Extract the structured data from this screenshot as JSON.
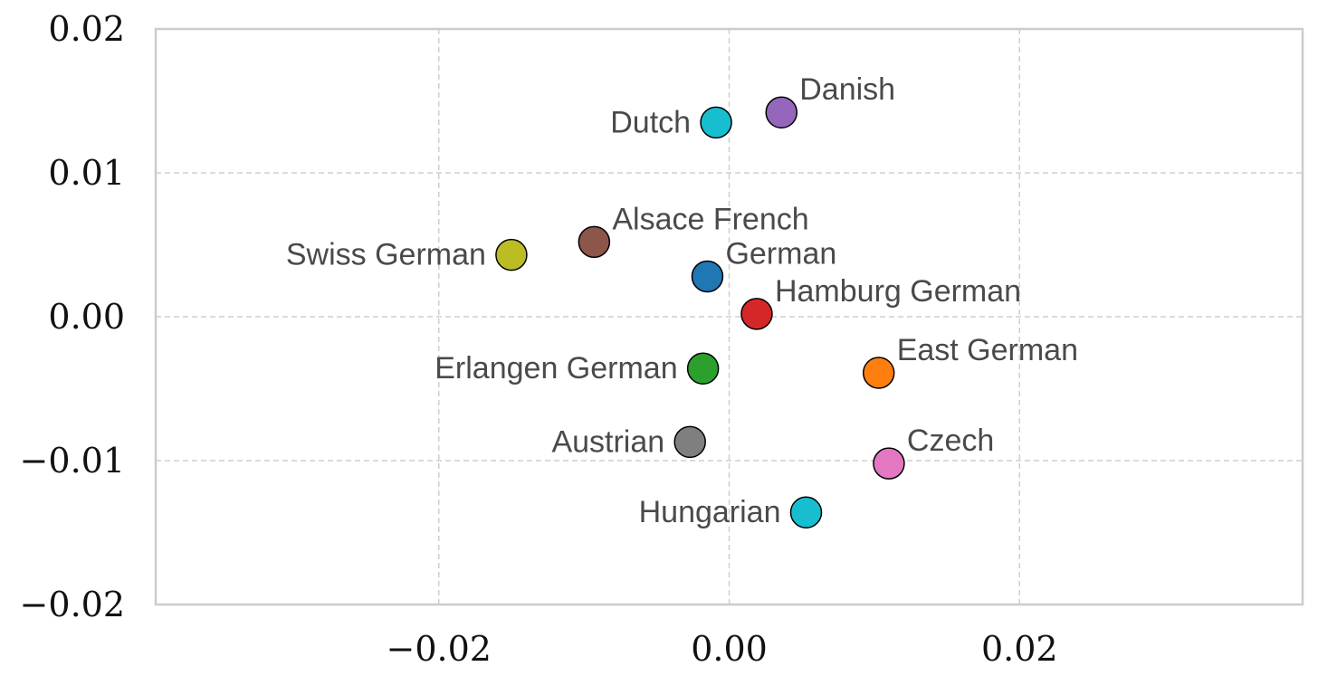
{
  "chart_data": {
    "type": "scatter",
    "title": "",
    "xlabel": "",
    "ylabel": "",
    "xlim": [
      -0.0395,
      0.0395
    ],
    "ylim": [
      -0.02,
      0.02
    ],
    "x_ticks": [
      {
        "value": -0.02,
        "label": "−0.02"
      },
      {
        "value": 0.0,
        "label": "0.00"
      },
      {
        "value": 0.02,
        "label": "0.02"
      }
    ],
    "y_ticks": [
      {
        "value": 0.02,
        "label": "0.02"
      },
      {
        "value": 0.01,
        "label": "0.01"
      },
      {
        "value": 0.0,
        "label": "0.00"
      },
      {
        "value": -0.01,
        "label": "−0.01"
      },
      {
        "value": -0.02,
        "label": "−0.02"
      }
    ],
    "grid": true,
    "points": [
      {
        "label": "Danish",
        "x": 0.0036,
        "y": 0.0142,
        "color": "#9467bd",
        "label_pos": "upper-right"
      },
      {
        "label": "Dutch",
        "x": -0.0009,
        "y": 0.0135,
        "color": "#17becf",
        "label_pos": "left"
      },
      {
        "label": "Alsace French",
        "x": -0.0093,
        "y": 0.0052,
        "color": "#8c564b",
        "label_pos": "upper-right"
      },
      {
        "label": "Swiss German",
        "x": -0.015,
        "y": 0.0043,
        "color": "#bcbd22",
        "label_pos": "left"
      },
      {
        "label": "German",
        "x": -0.0015,
        "y": 0.0028,
        "color": "#1f77b4",
        "label_pos": "upper-right"
      },
      {
        "label": "Hamburg German",
        "x": 0.0019,
        "y": 0.0002,
        "color": "#d62728",
        "label_pos": "upper-right"
      },
      {
        "label": "Erlangen German",
        "x": -0.0018,
        "y": -0.0036,
        "color": "#2ca02c",
        "label_pos": "left"
      },
      {
        "label": "East German",
        "x": 0.0103,
        "y": -0.0039,
        "color": "#ff7f0e",
        "label_pos": "upper-right"
      },
      {
        "label": "Austrian",
        "x": -0.0027,
        "y": -0.0087,
        "color": "#7f7f7f",
        "label_pos": "left"
      },
      {
        "label": "Czech",
        "x": 0.011,
        "y": -0.0102,
        "color": "#e377c2",
        "label_pos": "upper-right"
      },
      {
        "label": "Hungarian",
        "x": 0.0053,
        "y": -0.0136,
        "color": "#17becf",
        "label_pos": "left"
      }
    ]
  }
}
